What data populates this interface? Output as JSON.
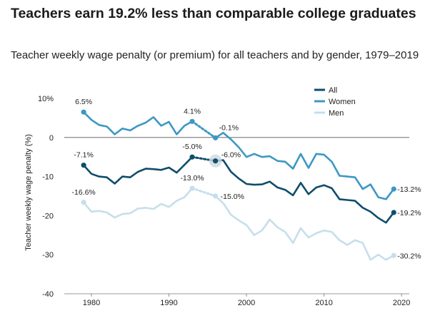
{
  "title": "Teachers earn 19.2% less than comparable college graduates",
  "subtitle": "Teacher weekly wage penalty (or premium) for all teachers and by gender, 1979–2019",
  "chart_data": {
    "type": "line",
    "ylabel": "Teacher weekly wage penalty (%)",
    "xlabel": "",
    "xlim": [
      1976.5,
      2021
    ],
    "ylim": [
      -40,
      10
    ],
    "x_ticks": [
      1980,
      1990,
      2000,
      2010,
      2020
    ],
    "y_ticks": [
      10,
      0,
      -10,
      -20,
      -30,
      -40
    ],
    "y_tick_labels": [
      "10%",
      "0",
      "-10",
      "-20",
      "-30",
      "-40"
    ],
    "grid": false,
    "legend_position": "top-right",
    "series": [
      {
        "name": "All",
        "color": "#0f4d6b",
        "segments": [
          {
            "x": [
              1979,
              1980,
              1981,
              1982,
              1983,
              1984,
              1985,
              1986,
              1987,
              1988,
              1989,
              1990,
              1991,
              1992,
              1993
            ],
            "y": [
              -7.1,
              -9.3,
              -10,
              -10.2,
              -11.8,
              -10,
              -10.2,
              -8.8,
              -8,
              -8.1,
              -8.3,
              -7.7,
              -9,
              -7,
              -5.0
            ]
          },
          {
            "x": [
              1996,
              1997,
              1998,
              1999,
              2000,
              2001,
              2002,
              2003,
              2004,
              2005,
              2006,
              2007,
              2008,
              2009,
              2010,
              2011,
              2012,
              2013,
              2014,
              2015,
              2016,
              2017,
              2018,
              2019
            ],
            "y": [
              -6.0,
              -5.8,
              -8.8,
              -10.5,
              -11.9,
              -12.1,
              -12,
              -11.3,
              -12.8,
              -13.4,
              -14.8,
              -11.6,
              -14.5,
              -12.8,
              -12.2,
              -13,
              -15.8,
              -16,
              -16.2,
              -18,
              -19,
              -20.6,
              -21.8,
              -19.2
            ]
          }
        ],
        "bridge": {
          "x": [
            1993,
            1996
          ],
          "y": [
            -5.0,
            -6.0
          ]
        },
        "annotations": [
          {
            "x": 1979,
            "y": -7.1,
            "label": "-7.1%"
          },
          {
            "x": 1993,
            "y": -5.0,
            "label": "-5.0%"
          },
          {
            "x": 1996,
            "y": -6.0,
            "label": "-6.0%"
          },
          {
            "x": 2019,
            "y": -19.2,
            "label": "-19.2%"
          }
        ]
      },
      {
        "name": "Women",
        "color": "#3c98c3",
        "segments": [
          {
            "x": [
              1979,
              1980,
              1981,
              1982,
              1983,
              1984,
              1985,
              1986,
              1987,
              1988,
              1989,
              1990,
              1991,
              1992,
              1993
            ],
            "y": [
              6.5,
              4.5,
              3.2,
              2.8,
              0.8,
              2.3,
              1.8,
              3,
              3.8,
              5.2,
              3,
              4,
              0.8,
              3,
              4.1
            ]
          },
          {
            "x": [
              1996,
              1997,
              1998,
              1999,
              2000,
              2001,
              2002,
              2003,
              2004,
              2005,
              2006,
              2007,
              2008,
              2009,
              2010,
              2011,
              2012,
              2013,
              2014,
              2015,
              2016,
              2017,
              2018,
              2019
            ],
            "y": [
              -0.1,
              1.2,
              -0.5,
              -2.5,
              -5,
              -4.2,
              -5,
              -4.8,
              -6,
              -6.2,
              -8,
              -4.2,
              -7.8,
              -4.2,
              -4.4,
              -6.2,
              -9.8,
              -10,
              -10.2,
              -13.2,
              -12,
              -15.3,
              -15.8,
              -13.2
            ]
          }
        ],
        "bridge": {
          "x": [
            1993,
            1996
          ],
          "y": [
            4.1,
            -0.1
          ]
        },
        "annotations": [
          {
            "x": 1979,
            "y": 6.5,
            "label": "6.5%"
          },
          {
            "x": 1993,
            "y": 4.1,
            "label": "4.1%"
          },
          {
            "x": 1996,
            "y": -0.1,
            "label": "-0.1%"
          },
          {
            "x": 2019,
            "y": -13.2,
            "label": "-13.2%"
          }
        ]
      },
      {
        "name": "Men",
        "color": "#c5dfec",
        "segments": [
          {
            "x": [
              1979,
              1980,
              1981,
              1982,
              1983,
              1984,
              1985,
              1986,
              1987,
              1988,
              1989,
              1990,
              1991,
              1992,
              1993
            ],
            "y": [
              -16.6,
              -19,
              -18.8,
              -19.2,
              -20.5,
              -19.6,
              -19.4,
              -18.2,
              -18,
              -18.3,
              -17,
              -17.8,
              -16.2,
              -15.3,
              -13.0
            ]
          },
          {
            "x": [
              1996,
              1997,
              1998,
              1999,
              2000,
              2001,
              2002,
              2003,
              2004,
              2005,
              2006,
              2007,
              2008,
              2009,
              2010,
              2011,
              2012,
              2013,
              2014,
              2015,
              2016,
              2017,
              2018,
              2019
            ],
            "y": [
              -15.0,
              -16.8,
              -19.8,
              -21.2,
              -22.4,
              -25,
              -23.8,
              -21,
              -23,
              -24.2,
              -27,
              -23.2,
              -25.6,
              -24.5,
              -23.8,
              -24.2,
              -26.3,
              -27.5,
              -26.3,
              -27,
              -31.3,
              -30,
              -31.3,
              -30.2
            ]
          }
        ],
        "bridge": {
          "x": [
            1993,
            1996
          ],
          "y": [
            -13.0,
            -15.0
          ]
        },
        "annotations": [
          {
            "x": 1979,
            "y": -16.6,
            "label": "-16.6%"
          },
          {
            "x": 1993,
            "y": -13.0,
            "label": "-13.0%"
          },
          {
            "x": 1996,
            "y": -15.0,
            "label": "-15.0%"
          },
          {
            "x": 2019,
            "y": -30.2,
            "label": "-30.2%"
          }
        ]
      }
    ]
  }
}
